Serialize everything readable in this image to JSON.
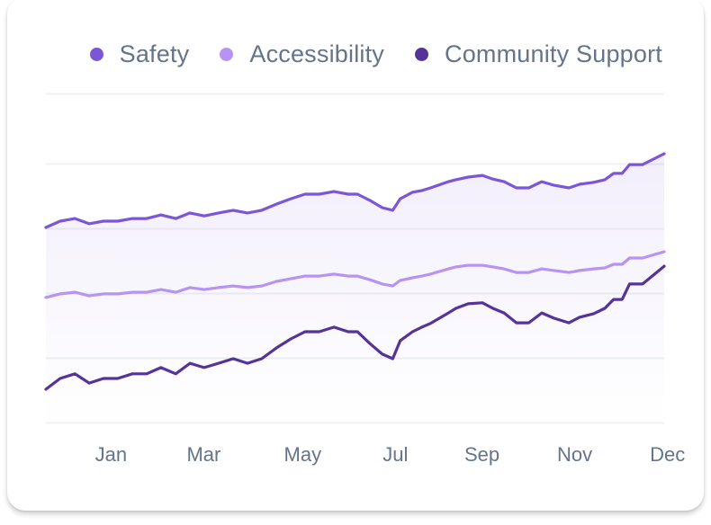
{
  "chart_data": {
    "type": "line",
    "title": "",
    "xlabel": "",
    "ylabel": "",
    "y_axis_labels_visible": false,
    "ylim": [
      0,
      100
    ],
    "grid": "horizontal",
    "legend_position": "top-right",
    "x_tick_labels": [
      "Jan",
      "Mar",
      "May",
      "Jul",
      "Sep",
      "Nov",
      "Dec"
    ],
    "x_tick_positions": [
      0.05,
      0.2,
      0.36,
      0.51,
      0.65,
      0.8,
      0.95
    ],
    "gridline_values": [
      0,
      19.7,
      39.3,
      59,
      78.7,
      100
    ],
    "x": [
      0,
      0.023,
      0.047,
      0.07,
      0.093,
      0.116,
      0.14,
      0.163,
      0.186,
      0.21,
      0.233,
      0.256,
      0.279,
      0.303,
      0.326,
      0.349,
      0.373,
      0.396,
      0.419,
      0.442,
      0.466,
      0.489,
      0.504,
      0.524,
      0.544,
      0.561,
      0.573,
      0.593,
      0.608,
      0.622,
      0.651,
      0.663,
      0.683,
      0.706,
      0.723,
      0.741,
      0.761,
      0.781,
      0.802,
      0.822,
      0.846,
      0.863,
      0.886,
      0.904,
      0.918,
      0.932,
      0.944,
      0.965,
      1.0
    ],
    "series": [
      {
        "name": "Safety",
        "color": "#7c56d8",
        "filled": true,
        "values": [
          59.3,
          61.2,
          62.0,
          60.4,
          61.2,
          61.2,
          62.0,
          62.0,
          63.1,
          62.0,
          63.7,
          62.8,
          63.7,
          64.5,
          63.7,
          64.5,
          66.4,
          68.0,
          69.4,
          69.4,
          70.2,
          69.4,
          69.4,
          67.5,
          65.3,
          64.5,
          68.0,
          70.0,
          70.5,
          71.3,
          73.2,
          73.8,
          74.6,
          75.1,
          74.0,
          73.2,
          71.3,
          71.3,
          73.2,
          72.1,
          71.3,
          72.4,
          73.0,
          73.8,
          75.7,
          75.7,
          78.4,
          78.4,
          81.7
        ]
      },
      {
        "name": "Accessibility",
        "color": "#b794f4",
        "filled": false,
        "values": [
          38.0,
          39.1,
          39.6,
          38.5,
          39.1,
          39.1,
          39.6,
          39.6,
          40.4,
          39.6,
          41.0,
          40.4,
          41.0,
          41.5,
          41.0,
          41.5,
          42.9,
          43.7,
          44.5,
          44.5,
          45.1,
          44.5,
          44.5,
          43.4,
          42.1,
          41.5,
          43.2,
          44.0,
          44.5,
          45.1,
          46.7,
          47.3,
          47.8,
          47.8,
          47.3,
          46.7,
          45.6,
          45.6,
          46.7,
          46.2,
          45.6,
          46.2,
          46.7,
          47.0,
          48.1,
          48.1,
          50.0,
          50.0,
          51.9
        ]
      },
      {
        "name": "Community Support",
        "color": "#553399",
        "filled": false,
        "values": [
          10.1,
          13.4,
          14.8,
          12.0,
          13.4,
          13.4,
          14.8,
          14.8,
          16.7,
          14.8,
          18.0,
          16.7,
          18.0,
          19.4,
          18.0,
          19.4,
          22.7,
          25.4,
          27.6,
          27.6,
          29.0,
          27.6,
          27.6,
          24.0,
          20.8,
          19.4,
          24.9,
          27.6,
          29.0,
          30.1,
          33.3,
          34.7,
          36.1,
          36.4,
          34.7,
          33.3,
          30.3,
          30.3,
          33.3,
          31.7,
          30.3,
          32.0,
          33.1,
          34.7,
          37.4,
          37.4,
          42.1,
          42.1,
          47.5
        ]
      }
    ]
  }
}
